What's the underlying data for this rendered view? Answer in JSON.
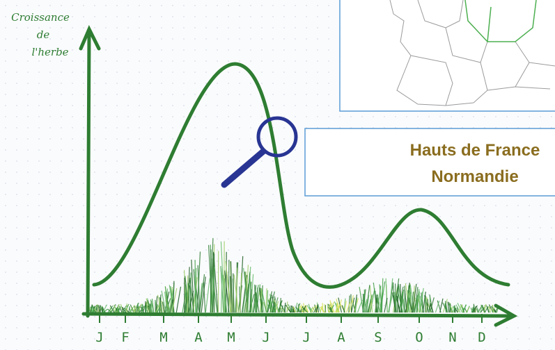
{
  "axis_label": [
    "Croissance",
    "de",
    "l'herbe"
  ],
  "months": [
    "J",
    "F",
    "M",
    "A",
    "M",
    "J",
    "J",
    "A",
    "S",
    "O",
    "N",
    "D"
  ],
  "region_box": {
    "lines": [
      "Hauts de France",
      "Normandie"
    ]
  }
}
